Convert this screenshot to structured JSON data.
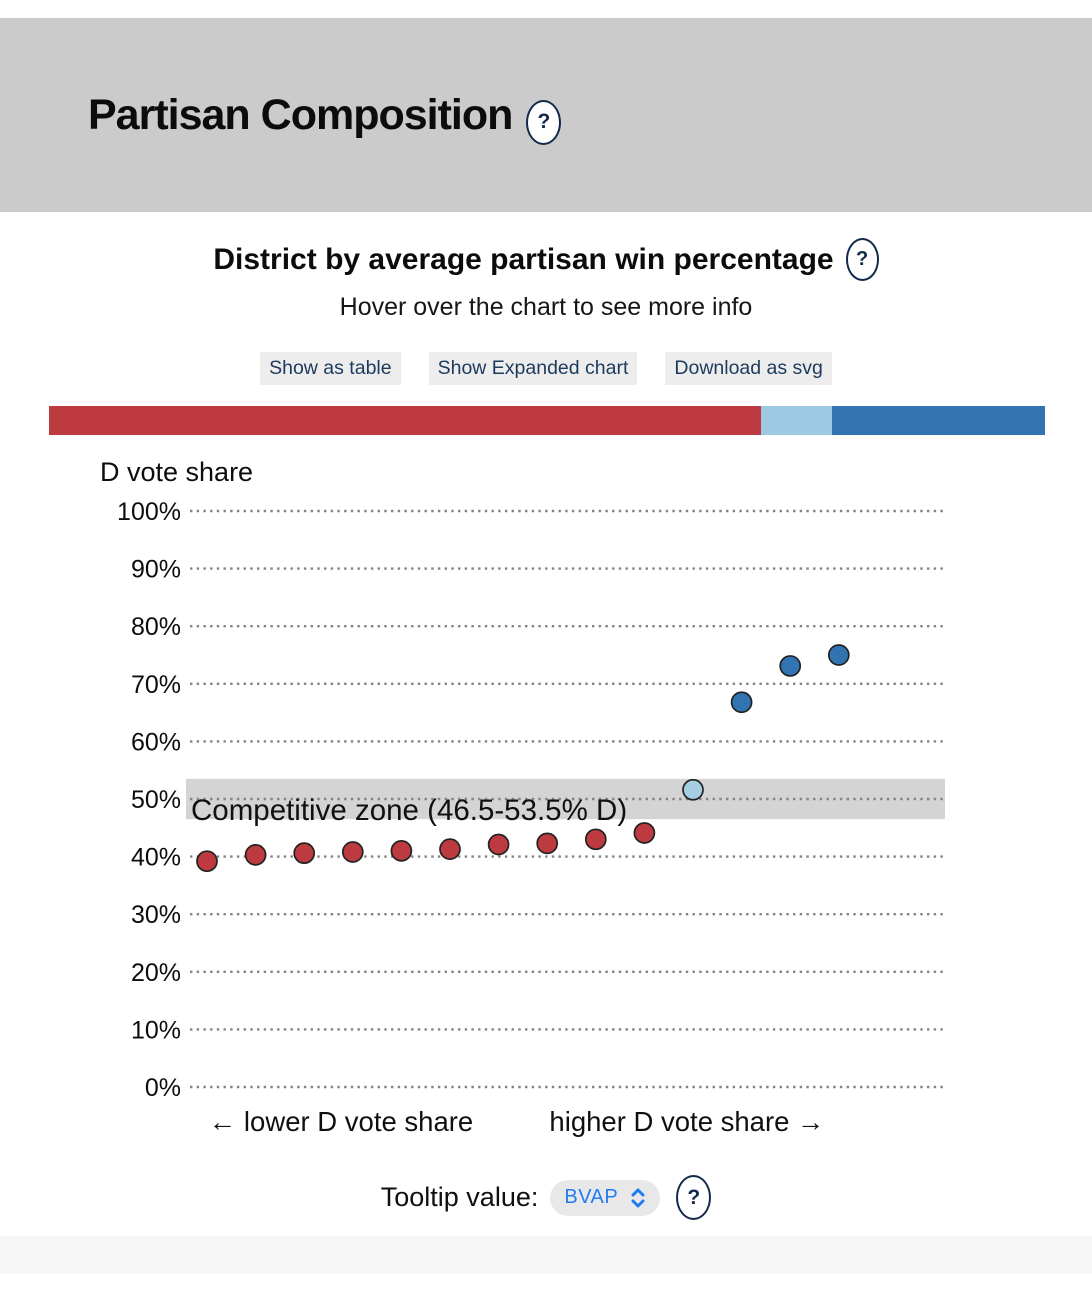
{
  "header": {
    "title": "Partisan Composition",
    "help_icon": "?"
  },
  "card": {
    "subtitle": "District by average partisan win percentage",
    "subtitle_help_icon": "?",
    "hint": "Hover over the chart to see more info",
    "actions": [
      {
        "label": "Show as table"
      },
      {
        "label": "Show Expanded chart"
      },
      {
        "label": "Download as svg"
      }
    ]
  },
  "proportion_bar": {
    "segments": [
      {
        "name": "rep-majority",
        "color": "#bc3a40",
        "fraction": 0.715
      },
      {
        "name": "competitive",
        "color": "#9ec9e2",
        "fraction": 0.071
      },
      {
        "name": "dem-majority",
        "color": "#3274b2",
        "fraction": 0.214
      }
    ]
  },
  "chart_data": {
    "type": "scatter",
    "title": "District by average partisan win percentage",
    "ylabel": "D vote share",
    "ylim": [
      0,
      100
    ],
    "grid": "horizontal-dotted",
    "legend": "none",
    "yticks": [
      {
        "value": 0,
        "label": "0%"
      },
      {
        "value": 10,
        "label": "10%"
      },
      {
        "value": 20,
        "label": "20%"
      },
      {
        "value": 30,
        "label": "30%"
      },
      {
        "value": 40,
        "label": "40%"
      },
      {
        "value": 50,
        "label": "50%"
      },
      {
        "value": 60,
        "label": "60%"
      },
      {
        "value": 70,
        "label": "70%"
      },
      {
        "value": 80,
        "label": "80%"
      },
      {
        "value": 90,
        "label": "90%"
      },
      {
        "value": 100,
        "label": "100%"
      }
    ],
    "competitive_zone": {
      "label": "Competitive zone (46.5-53.5% D)",
      "min": 46.5,
      "max": 53.5,
      "color": "#d4d4d4"
    },
    "x_axis_left_label": "← lower D vote share",
    "x_axis_right_label": "higher D vote share →",
    "colors": {
      "rep": "#bc3a40",
      "swing": "#a6cee3",
      "dem": "#3274b2"
    },
    "points": [
      {
        "category": "rep",
        "d_vote_share": 39.2
      },
      {
        "category": "rep",
        "d_vote_share": 40.3
      },
      {
        "category": "rep",
        "d_vote_share": 40.6
      },
      {
        "category": "rep",
        "d_vote_share": 40.8
      },
      {
        "category": "rep",
        "d_vote_share": 41.0
      },
      {
        "category": "rep",
        "d_vote_share": 41.3
      },
      {
        "category": "rep",
        "d_vote_share": 42.1
      },
      {
        "category": "rep",
        "d_vote_share": 42.3
      },
      {
        "category": "rep",
        "d_vote_share": 43.0
      },
      {
        "category": "rep",
        "d_vote_share": 44.1
      },
      {
        "category": "swing",
        "d_vote_share": 51.6
      },
      {
        "category": "dem",
        "d_vote_share": 66.8
      },
      {
        "category": "dem",
        "d_vote_share": 73.1
      },
      {
        "category": "dem",
        "d_vote_share": 75.0
      }
    ]
  },
  "tooltip_control": {
    "label": "Tooltip value:",
    "selected": "BVAP",
    "help_icon": "?"
  }
}
